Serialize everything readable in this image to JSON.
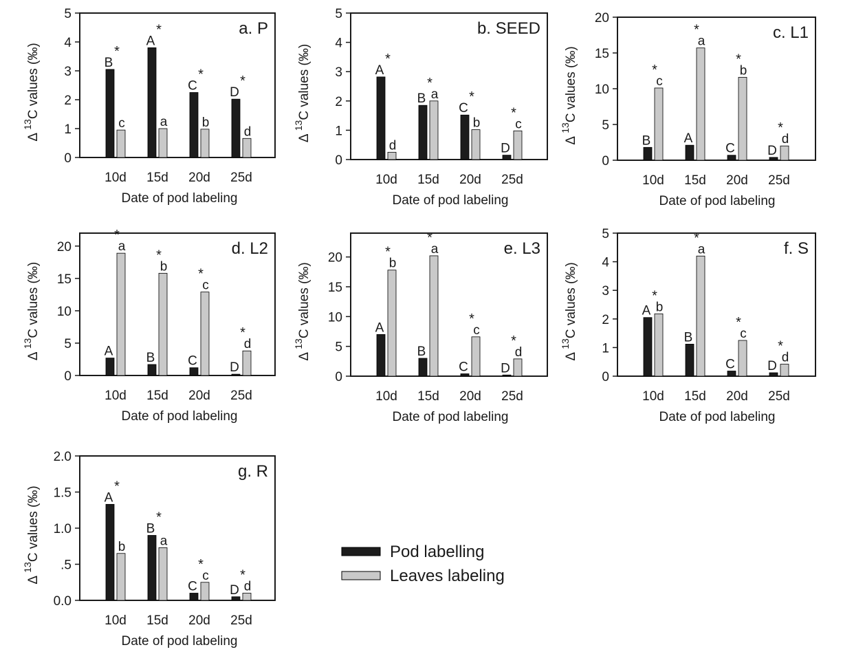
{
  "chart_data": [
    {
      "type": "bar",
      "panel_label": "a. P",
      "categories": [
        "10d",
        "15d",
        "20d",
        "25d"
      ],
      "xlabel": "Date of pod labeling",
      "ylabel": {
        "delta": "Δ",
        "sup": "13",
        "main": "C values (‰)"
      },
      "ylim": [
        0,
        5
      ],
      "yticks": [
        0,
        1,
        2,
        3,
        4,
        5
      ],
      "ytick_labels": [
        "0",
        "1",
        "2",
        "3",
        "4",
        "5"
      ],
      "series": [
        {
          "name": "Pod labelling",
          "values": [
            3.05,
            3.8,
            2.25,
            2.02
          ],
          "letters": [
            "B",
            "A",
            "C",
            "D"
          ],
          "stars": [
            false,
            false,
            false,
            false
          ]
        },
        {
          "name": "Leaves labeling",
          "values": [
            0.95,
            1.0,
            0.98,
            0.66
          ],
          "letters": [
            "c",
            "a",
            "b",
            "d"
          ],
          "stars": [
            false,
            false,
            false,
            false
          ]
        }
      ],
      "significance_stars": [
        true,
        true,
        true,
        true
      ]
    },
    {
      "type": "bar",
      "panel_label": "b. SEED",
      "categories": [
        "10d",
        "15d",
        "20d",
        "25d"
      ],
      "xlabel": "Date of pod labeling",
      "ylabel": {
        "delta": "Δ",
        "sup": "13",
        "main": "C values (‰)"
      },
      "ylim": [
        0,
        5
      ],
      "yticks": [
        0,
        1,
        2,
        3,
        4,
        5
      ],
      "ytick_labels": [
        "0",
        "1",
        "2",
        "3",
        "4",
        "5"
      ],
      "series": [
        {
          "name": "Pod labelling",
          "values": [
            2.82,
            1.85,
            1.52,
            0.15
          ],
          "letters": [
            "A",
            "B",
            "C",
            "D"
          ]
        },
        {
          "name": "Leaves labeling",
          "values": [
            0.25,
            2.0,
            1.02,
            0.98
          ],
          "letters": [
            "d",
            "a",
            "b",
            "c"
          ]
        }
      ],
      "significance_stars": [
        true,
        true,
        true,
        true
      ]
    },
    {
      "type": "bar",
      "panel_label": "c. L1",
      "categories": [
        "10d",
        "15d",
        "20d",
        "25d"
      ],
      "xlabel": "Date of pod labeling",
      "ylabel": {
        "delta": "Δ",
        "sup": "13",
        "main": "C values (‰)"
      },
      "ylim": [
        0,
        20
      ],
      "yticks": [
        0,
        5,
        10,
        15,
        20
      ],
      "ytick_labels": [
        "0",
        "5",
        "10",
        "15",
        "20"
      ],
      "series": [
        {
          "name": "Pod labelling",
          "values": [
            1.8,
            2.1,
            0.7,
            0.4
          ],
          "letters": [
            "B",
            "A",
            "C",
            "D"
          ]
        },
        {
          "name": "Leaves labeling",
          "values": [
            10.1,
            15.7,
            11.6,
            2.0
          ],
          "letters": [
            "c",
            "a",
            "b",
            "d"
          ]
        }
      ],
      "significance_stars": [
        true,
        true,
        true,
        true
      ]
    },
    {
      "type": "bar",
      "panel_label": "d. L2",
      "categories": [
        "10d",
        "15d",
        "20d",
        "25d"
      ],
      "xlabel": "Date of pod labeling",
      "ylabel": {
        "delta": "Δ",
        "sup": "13",
        "main": "C values (‰)"
      },
      "ylim": [
        0,
        22
      ],
      "yticks": [
        0,
        5,
        10,
        15,
        20
      ],
      "ytick_labels": [
        "0",
        "5",
        "10",
        "15",
        "20"
      ],
      "series": [
        {
          "name": "Pod labelling",
          "values": [
            2.7,
            1.7,
            1.2,
            0.2
          ],
          "letters": [
            "A",
            "B",
            "C",
            "D"
          ]
        },
        {
          "name": "Leaves labeling",
          "values": [
            18.9,
            15.8,
            12.9,
            3.8
          ],
          "letters": [
            "a",
            "b",
            "c",
            "d"
          ]
        }
      ],
      "significance_stars": [
        true,
        true,
        true,
        true
      ]
    },
    {
      "type": "bar",
      "panel_label": "e. L3",
      "categories": [
        "10d",
        "15d",
        "20d",
        "25d"
      ],
      "xlabel": "Date of pod labeling",
      "ylabel": {
        "delta": "Δ",
        "sup": "13",
        "main": "C values (‰)"
      },
      "ylim": [
        0,
        24
      ],
      "yticks": [
        0,
        5,
        10,
        15,
        20
      ],
      "ytick_labels": [
        "0",
        "5",
        "10",
        "15",
        "20"
      ],
      "series": [
        {
          "name": "Pod labelling",
          "values": [
            7.0,
            3.0,
            0.4,
            0.2
          ],
          "letters": [
            "A",
            "B",
            "C",
            "D"
          ]
        },
        {
          "name": "Leaves labeling",
          "values": [
            17.8,
            20.2,
            6.6,
            2.9
          ],
          "letters": [
            "b",
            "a",
            "c",
            "d"
          ]
        }
      ],
      "significance_stars": [
        true,
        true,
        true,
        true
      ]
    },
    {
      "type": "bar",
      "panel_label": "f. S",
      "categories": [
        "10d",
        "15d",
        "20d",
        "25d"
      ],
      "xlabel": "Date of pod labeling",
      "ylabel": {
        "delta": "Δ",
        "sup": "13",
        "main": "C values (‰)"
      },
      "ylim": [
        0,
        5
      ],
      "yticks": [
        0,
        1,
        2,
        3,
        4,
        5
      ],
      "ytick_labels": [
        "0",
        "1",
        "2",
        "3",
        "4",
        "5"
      ],
      "series": [
        {
          "name": "Pod labelling",
          "values": [
            2.05,
            1.12,
            0.18,
            0.12
          ],
          "letters": [
            "A",
            "B",
            "C",
            "D"
          ]
        },
        {
          "name": "Leaves labeling",
          "values": [
            2.18,
            4.2,
            1.25,
            0.42
          ],
          "letters": [
            "b",
            "a",
            "c",
            "d"
          ]
        }
      ],
      "significance_stars": [
        true,
        true,
        true,
        true
      ]
    },
    {
      "type": "bar",
      "panel_label": "g. R",
      "categories": [
        "10d",
        "15d",
        "20d",
        "25d"
      ],
      "xlabel": "Date of pod labeling",
      "ylabel": {
        "delta": "Δ",
        "sup": "13",
        "main": "C values (‰)"
      },
      "ylim": [
        0,
        2.0
      ],
      "yticks": [
        0,
        0.5,
        1.0,
        1.5,
        2.0
      ],
      "ytick_labels": [
        "0.0",
        ".5",
        "1.0",
        "1.5",
        "2.0"
      ],
      "series": [
        {
          "name": "Pod labelling",
          "values": [
            1.33,
            0.9,
            0.1,
            0.05
          ],
          "letters": [
            "A",
            "B",
            "C",
            "D"
          ]
        },
        {
          "name": "Leaves labeling",
          "values": [
            0.65,
            0.73,
            0.25,
            0.1
          ],
          "letters": [
            "b",
            "a",
            "c",
            "d"
          ]
        }
      ],
      "significance_stars": [
        true,
        true,
        true,
        true
      ]
    }
  ],
  "legend": {
    "items": [
      {
        "label": "Pod labelling",
        "color": "#1c1c1c"
      },
      {
        "label": "Leaves labeling",
        "color": "#c9c9c9"
      }
    ]
  },
  "colors": {
    "pod": "#1c1c1c",
    "leaves": "#c9c9c9",
    "axis": "#1a1a1a"
  }
}
